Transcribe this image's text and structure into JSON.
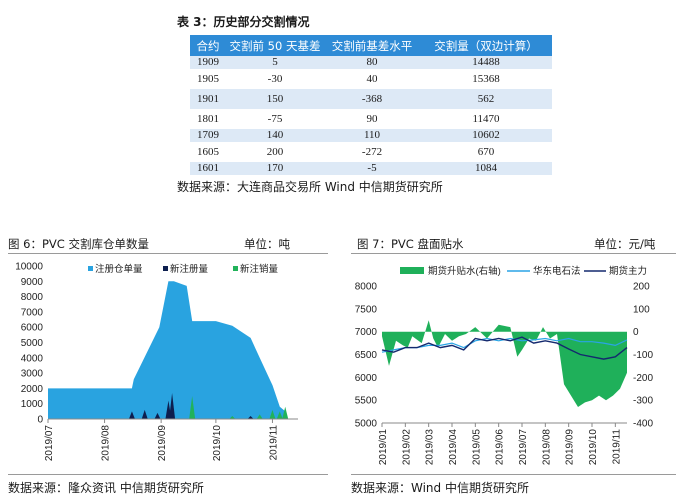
{
  "table3": {
    "title": "表 3：历史部分交割情况",
    "headers": [
      "合约",
      "交割前 50 天基差",
      "交割前基差水平",
      "交割量（双边计算）"
    ],
    "rows": [
      [
        "1909",
        "5",
        "80",
        "14488"
      ],
      [
        "1905",
        "-30",
        "40",
        "15368"
      ],
      [
        "1901",
        "150",
        "-368",
        "562"
      ],
      [
        "1801",
        "-75",
        "90",
        "11470"
      ],
      [
        "1709",
        "140",
        "110",
        "10602"
      ],
      [
        "1605",
        "200",
        "-272",
        "670"
      ],
      [
        "1601",
        "170",
        "-5",
        "1084"
      ]
    ],
    "source": "数据来源：大连商品交易所  Wind  中信期货研究所"
  },
  "figure6": {
    "title": "图 6：PVC 交割库仓单数量",
    "unit": "单位：吨",
    "source": "数据来源：隆众资讯  中信期货研究所"
  },
  "figure7": {
    "title": "图 7：PVC 盘面贴水",
    "unit": "单位：元/吨",
    "source": "数据来源：Wind  中信期货研究所"
  },
  "colors": {
    "table_header": "#2e8bd6",
    "table_stripe": "#dde9f6",
    "warehouse_fill": "#29a3e0",
    "new_register": "#0d1f4f",
    "new_cancel": "#21b25a",
    "spread_area": "#1fb05a",
    "east_china": "#2aa4e6",
    "futures_main": "#14296e"
  },
  "chart_data": [
    {
      "type": "area",
      "x": [
        "2019/07/01",
        "2019/08/01",
        "2019/08/16",
        "2019/08/17",
        "2019/08/31",
        "2019/09/05",
        "2019/09/08",
        "2019/09/15",
        "2019/09/18",
        "2019/09/25",
        "2019/10/01",
        "2019/10/10",
        "2019/10/20",
        "2019/10/25",
        "2019/11/01",
        "2019/11/05",
        "2019/11/08"
      ],
      "xticks": [
        "2019/07",
        "2019/08",
        "2019/09",
        "2019/10",
        "2019/11"
      ],
      "ylim": [
        0,
        10000
      ],
      "yticks": [
        0,
        1000,
        2000,
        3000,
        4000,
        5000,
        6000,
        7000,
        8000,
        9000,
        10000
      ],
      "legend_position": "top",
      "series": [
        {
          "name": "注册仓单量",
          "chart": "area",
          "values": [
            2000,
            2000,
            2000,
            2600,
            6000,
            9000,
            9000,
            8700,
            6400,
            6400,
            6400,
            6100,
            5300,
            4000,
            2200,
            800,
            500
          ]
        },
        {
          "name": "新注册量",
          "chart": "spikes",
          "x": [
            "2019/08/16",
            "2019/08/23",
            "2019/08/30",
            "2019/09/05",
            "2019/09/07",
            "2019/10/20"
          ],
          "values": [
            500,
            600,
            400,
            1200,
            1700,
            200
          ]
        },
        {
          "name": "新注销量",
          "chart": "spikes",
          "x": [
            "2019/09/18",
            "2019/10/10",
            "2019/10/25",
            "2019/11/01",
            "2019/11/05",
            "2019/11/08"
          ],
          "values": [
            1500,
            200,
            300,
            600,
            500,
            800
          ]
        }
      ]
    },
    {
      "type": "line",
      "xticks": [
        "2019/01",
        "2019/02",
        "2019/03",
        "2019/04",
        "2019/05",
        "2019/06",
        "2019/07",
        "2019/08",
        "2019/09",
        "2019/10",
        "2019/11"
      ],
      "ylim_left": [
        5000,
        8000
      ],
      "yticks_left": [
        5000,
        5500,
        6000,
        6500,
        7000,
        7500,
        8000
      ],
      "ylim_right": [
        -400,
        200
      ],
      "yticks_right": [
        -400,
        -300,
        -200,
        -100,
        0,
        100,
        200
      ],
      "legend_position": "top",
      "series": [
        {
          "name": "期货升贴水(右轴)",
          "axis": "right",
          "chart": "area",
          "x": [
            1,
            1.3,
            1.6,
            1.9,
            2.1,
            2.3,
            2.7,
            3.0,
            3.2,
            3.4,
            3.7,
            4.0,
            4.3,
            4.6,
            5.0,
            5.5,
            6.0,
            6.5,
            6.8,
            7.0,
            7.3,
            7.6,
            7.9,
            8.2,
            8.5,
            8.8,
            9.1,
            9.4,
            9.7,
            10.0,
            10.3,
            10.6,
            10.9,
            11.2,
            11.5
          ],
          "values": [
            -20,
            -150,
            -40,
            -60,
            -70,
            -20,
            -50,
            50,
            -30,
            -70,
            -10,
            -40,
            -20,
            -10,
            20,
            -30,
            30,
            20,
            -110,
            -80,
            -30,
            -40,
            20,
            -30,
            -10,
            -230,
            -280,
            -330,
            -310,
            -300,
            -280,
            -300,
            -280,
            -250,
            -180
          ]
        },
        {
          "name": "华东电石法",
          "axis": "left",
          "x": [
            1,
            1.5,
            2.0,
            2.5,
            3.0,
            3.5,
            4.0,
            4.5,
            5.0,
            5.5,
            6.0,
            6.5,
            7.0,
            7.5,
            8.0,
            8.5,
            9.0,
            9.5,
            10.0,
            10.5,
            11.0,
            11.5
          ],
          "values": [
            6550,
            6600,
            6650,
            6650,
            6700,
            6700,
            6750,
            6650,
            6800,
            6850,
            6800,
            6850,
            6800,
            6820,
            6850,
            6800,
            6850,
            6780,
            6780,
            6750,
            6700,
            6820
          ]
        },
        {
          "name": "期货主力",
          "axis": "left",
          "x": [
            1,
            1.5,
            2.0,
            2.5,
            3.0,
            3.5,
            4.0,
            4.5,
            5.0,
            5.5,
            6.0,
            6.5,
            7.0,
            7.5,
            8.0,
            8.5,
            9.0,
            9.5,
            10.0,
            10.5,
            11.0,
            11.5
          ],
          "values": [
            6600,
            6550,
            6650,
            6650,
            6750,
            6650,
            6700,
            6600,
            6850,
            6800,
            6850,
            6800,
            6880,
            6750,
            6800,
            6750,
            6620,
            6500,
            6450,
            6400,
            6450,
            6650
          ]
        }
      ]
    }
  ]
}
